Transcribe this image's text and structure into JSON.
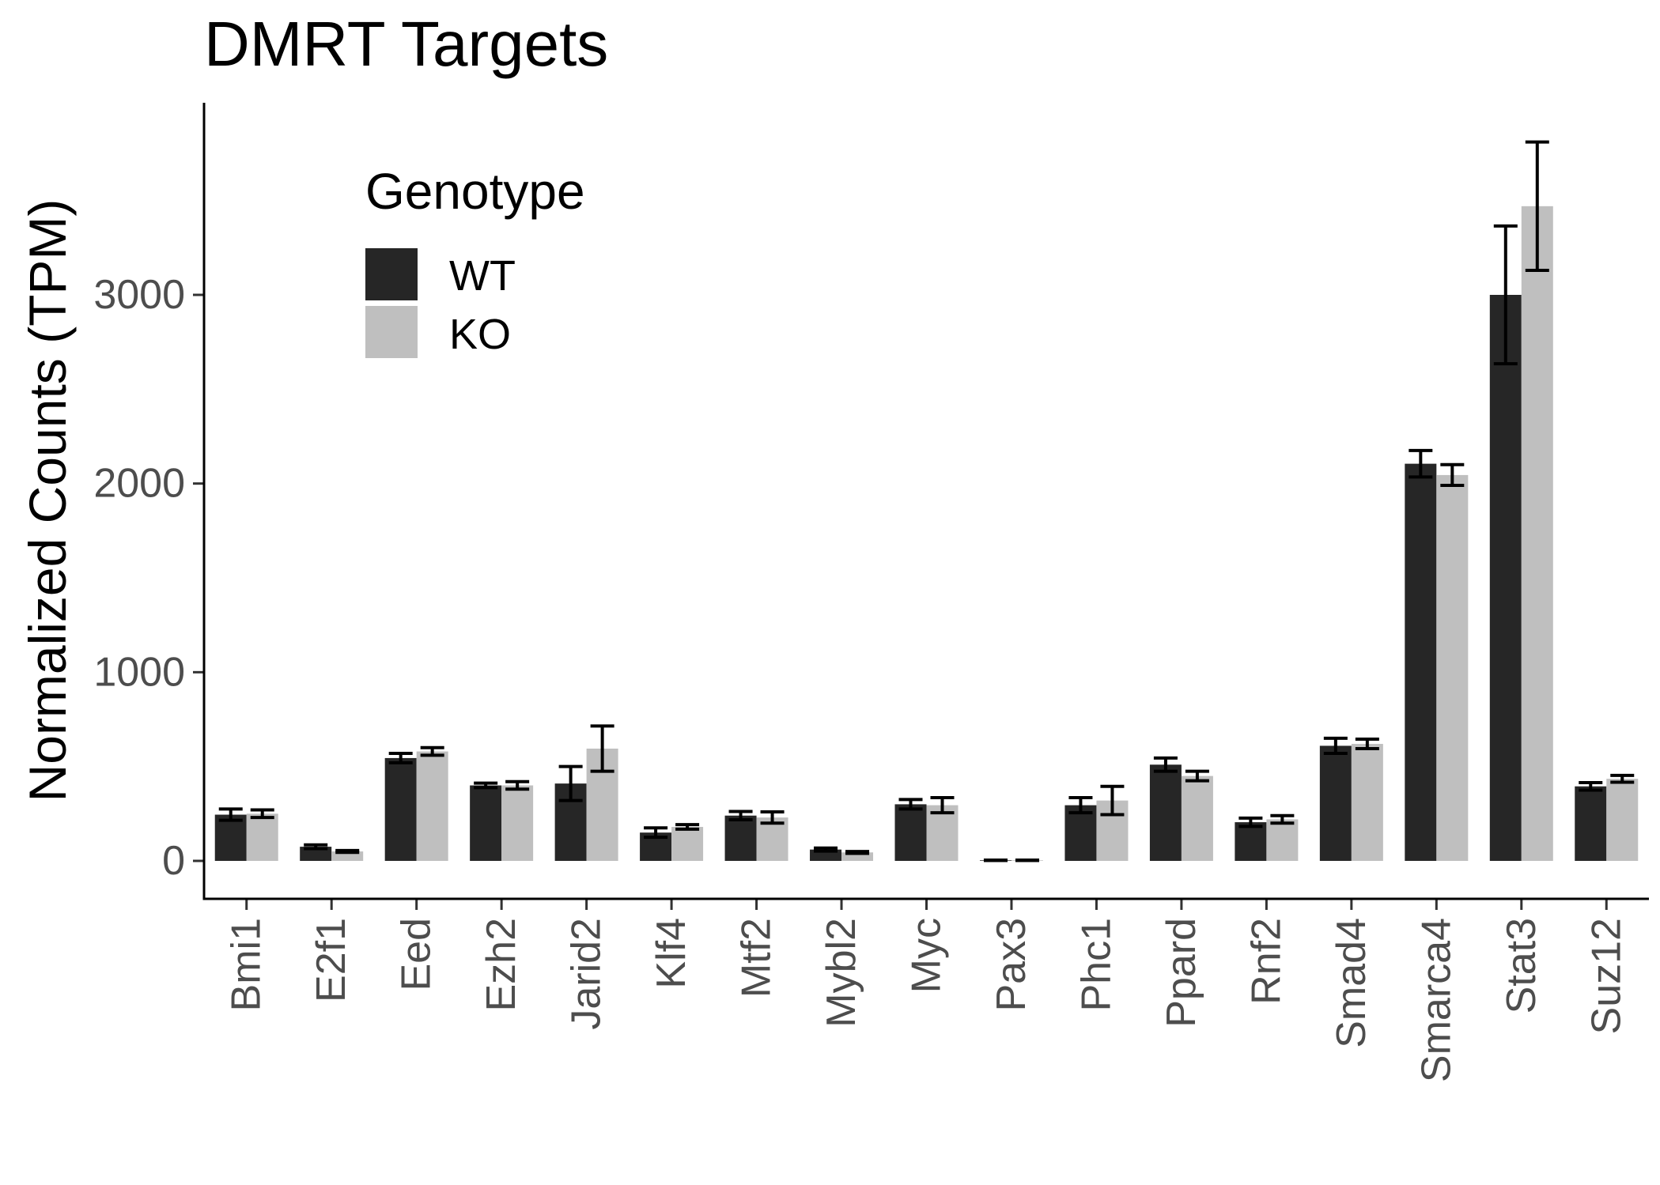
{
  "chart_data": {
    "type": "bar",
    "title": "DMRT Targets",
    "xlabel": "",
    "ylabel": "Normalized Counts (TPM)",
    "ylim": [
      -180,
      4000
    ],
    "yticks": [
      0,
      1000,
      2000,
      3000
    ],
    "grid": false,
    "legend": {
      "title": "Genotype",
      "placement": "top-left"
    },
    "categories": [
      "Bmi1",
      "E2f1",
      "Eed",
      "Ezh2",
      "Jarid2",
      "Klf4",
      "Mtf2",
      "Mybl2",
      "Myc",
      "Pax3",
      "Phc1",
      "Ppard",
      "Rnf2",
      "Smad4",
      "Smarca4",
      "Stat3",
      "Suz12"
    ],
    "series": [
      {
        "name": "WT",
        "color": "#262626",
        "values": [
          245,
          75,
          545,
          400,
          410,
          150,
          240,
          60,
          300,
          3,
          295,
          510,
          205,
          610,
          2105,
          3000,
          395
        ],
        "error": [
          30,
          10,
          25,
          12,
          90,
          25,
          22,
          8,
          25,
          1,
          40,
          35,
          22,
          40,
          70,
          365,
          20
        ]
      },
      {
        "name": "KO",
        "color": "#bfbfbf",
        "values": [
          250,
          50,
          580,
          400,
          595,
          180,
          230,
          45,
          295,
          3,
          320,
          450,
          220,
          620,
          2045,
          3470,
          435
        ],
        "error": [
          20,
          5,
          20,
          20,
          120,
          12,
          30,
          5,
          40,
          1,
          75,
          25,
          20,
          25,
          55,
          340,
          18
        ]
      }
    ]
  }
}
